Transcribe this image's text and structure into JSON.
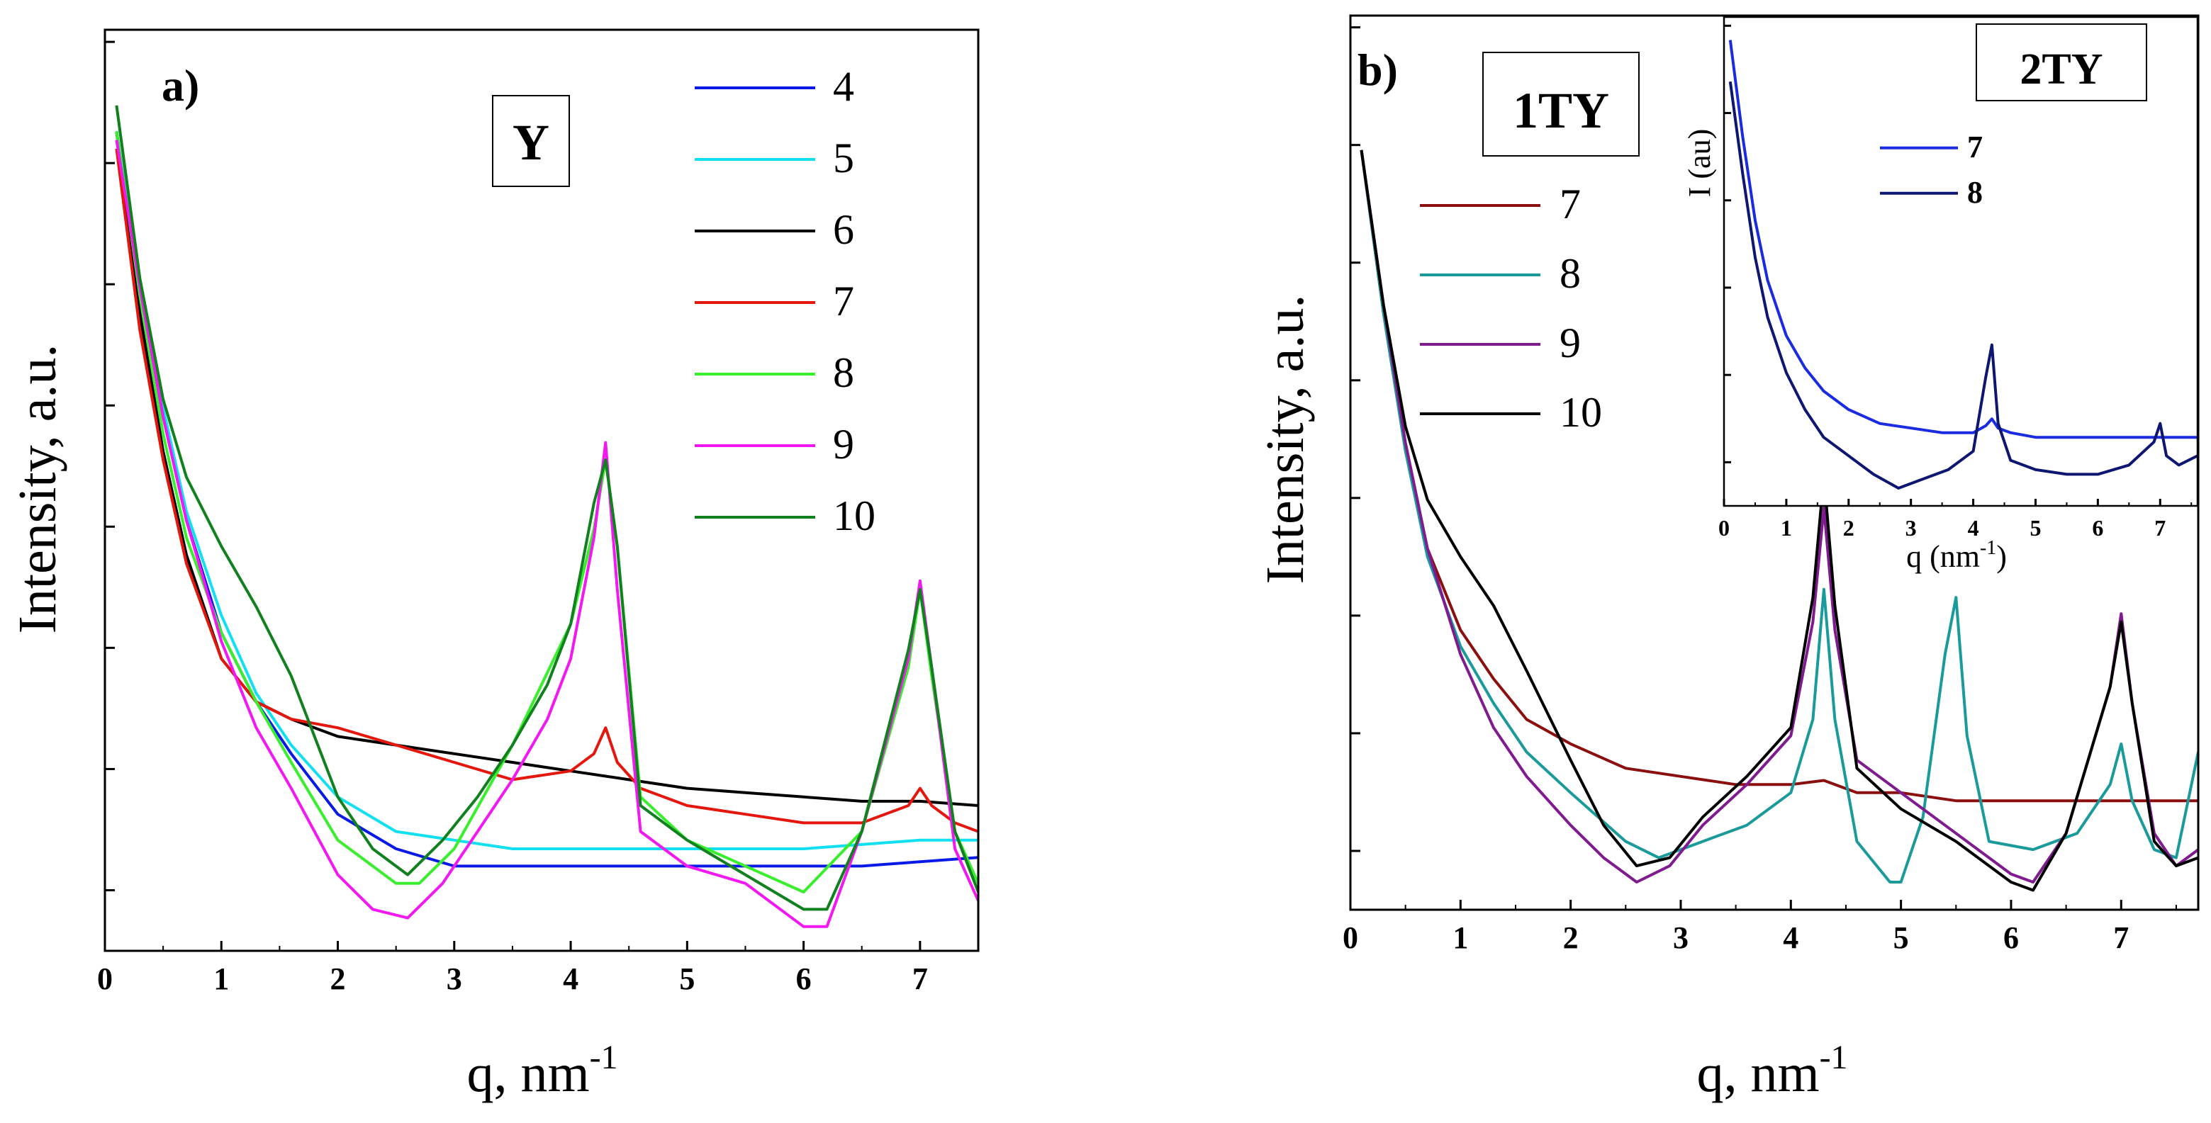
{
  "panels": [
    {
      "id": "a",
      "panel_label": "a)",
      "sample_label": "Y",
      "xlabel": "q, nm",
      "xlabel_sup": "-1",
      "ylabel": "Intensity, a.u.",
      "legend": [
        {
          "label": "4",
          "color": "#0a1ae6"
        },
        {
          "label": "5",
          "color": "#12e0f0"
        },
        {
          "label": "6",
          "color": "#000000"
        },
        {
          "label": "7",
          "color": "#e3170d"
        },
        {
          "label": "8",
          "color": "#39ee2c"
        },
        {
          "label": "9",
          "color": "#f218f2"
        },
        {
          "label": "10",
          "color": "#11801e"
        }
      ]
    },
    {
      "id": "b",
      "panel_label": "b)",
      "sample_label": "1TY",
      "xlabel": "q, nm",
      "xlabel_sup": "-1",
      "ylabel": "Intensity, a.u.",
      "legend": [
        {
          "label": "7",
          "color": "#8b0f0f"
        },
        {
          "label": "8",
          "color": "#1a9a9a"
        },
        {
          "label": "9",
          "color": "#7f1a8f"
        },
        {
          "label": "10",
          "color": "#000000"
        }
      ]
    },
    {
      "id": "b-inset",
      "sample_label": "2TY",
      "xlabel": "q (nm",
      "xlabel_sup": "-1",
      "xlabel_end": ")",
      "ylabel": "I (au)",
      "legend": [
        {
          "label": "7",
          "color": "#1a2be0"
        },
        {
          "label": "8",
          "color": "#0d1670"
        }
      ]
    }
  ],
  "chart_data": [
    {
      "type": "line",
      "title": "a)",
      "annotation": "Y",
      "xlabel": "q, nm^-1",
      "ylabel": "Intensity, a.u.",
      "xlim": [
        0,
        7.5
      ],
      "ylim": [
        0,
        1
      ],
      "xticks": [
        0,
        1,
        2,
        3,
        4,
        5,
        6,
        7
      ],
      "legend_position": "top-right",
      "series": [
        {
          "name": "4",
          "color": "#0a1ae6",
          "x": [
            0.1,
            0.3,
            0.5,
            0.7,
            1.0,
            1.3,
            1.6,
            2.0,
            2.5,
            3.0,
            3.5,
            4.0,
            4.5,
            5.0,
            5.5,
            6.0,
            6.5,
            7.0,
            7.5
          ],
          "y": [
            0.93,
            0.75,
            0.6,
            0.48,
            0.35,
            0.27,
            0.21,
            0.14,
            0.1,
            0.08,
            0.08,
            0.08,
            0.08,
            0.08,
            0.08,
            0.08,
            0.08,
            0.085,
            0.09
          ]
        },
        {
          "name": "5",
          "color": "#12e0f0",
          "x": [
            0.1,
            0.3,
            0.5,
            0.7,
            1.0,
            1.3,
            1.6,
            2.0,
            2.5,
            3.0,
            3.5,
            4.0,
            4.5,
            5.0,
            5.5,
            6.0,
            6.5,
            7.0,
            7.5
          ],
          "y": [
            0.93,
            0.75,
            0.61,
            0.49,
            0.37,
            0.28,
            0.22,
            0.16,
            0.12,
            0.11,
            0.1,
            0.1,
            0.1,
            0.1,
            0.1,
            0.1,
            0.105,
            0.11,
            0.11
          ]
        },
        {
          "name": "6",
          "color": "#000000",
          "x": [
            0.1,
            0.3,
            0.5,
            0.7,
            1.0,
            1.3,
            1.6,
            2.0,
            2.5,
            3.0,
            3.5,
            4.0,
            4.5,
            5.0,
            5.5,
            6.0,
            6.5,
            7.0,
            7.5
          ],
          "y": [
            0.93,
            0.72,
            0.56,
            0.44,
            0.32,
            0.27,
            0.25,
            0.23,
            0.22,
            0.21,
            0.2,
            0.19,
            0.18,
            0.17,
            0.165,
            0.16,
            0.155,
            0.155,
            0.15
          ]
        },
        {
          "name": "7",
          "color": "#e3170d",
          "x": [
            0.1,
            0.3,
            0.5,
            0.7,
            1.0,
            1.3,
            1.6,
            2.0,
            2.5,
            3.0,
            3.5,
            4.0,
            4.2,
            4.3,
            4.4,
            4.6,
            5.0,
            5.5,
            6.0,
            6.5,
            6.9,
            7.0,
            7.1,
            7.3,
            7.5
          ],
          "y": [
            0.91,
            0.7,
            0.55,
            0.43,
            0.32,
            0.27,
            0.25,
            0.24,
            0.22,
            0.2,
            0.18,
            0.19,
            0.21,
            0.24,
            0.2,
            0.17,
            0.15,
            0.14,
            0.13,
            0.13,
            0.15,
            0.17,
            0.15,
            0.13,
            0.12
          ]
        },
        {
          "name": "8",
          "color": "#39ee2c",
          "x": [
            0.1,
            0.3,
            0.5,
            0.7,
            1.0,
            1.3,
            1.6,
            2.0,
            2.5,
            2.7,
            3.0,
            3.5,
            4.0,
            4.2,
            4.3,
            4.4,
            4.6,
            5.0,
            5.5,
            6.0,
            6.5,
            6.9,
            7.0,
            7.1,
            7.3,
            7.5
          ],
          "y": [
            0.93,
            0.74,
            0.58,
            0.46,
            0.35,
            0.27,
            0.2,
            0.11,
            0.06,
            0.06,
            0.1,
            0.22,
            0.36,
            0.47,
            0.55,
            0.45,
            0.16,
            0.11,
            0.08,
            0.05,
            0.12,
            0.31,
            0.4,
            0.3,
            0.12,
            0.06
          ]
        },
        {
          "name": "9",
          "color": "#f218f2",
          "x": [
            0.1,
            0.3,
            0.5,
            0.7,
            1.0,
            1.3,
            1.6,
            2.0,
            2.3,
            2.6,
            2.9,
            3.2,
            3.5,
            3.8,
            4.0,
            4.2,
            4.3,
            4.4,
            4.6,
            5.0,
            5.5,
            6.0,
            6.2,
            6.5,
            6.9,
            7.0,
            7.1,
            7.3,
            7.5
          ],
          "y": [
            0.92,
            0.75,
            0.6,
            0.48,
            0.34,
            0.24,
            0.17,
            0.07,
            0.03,
            0.02,
            0.06,
            0.12,
            0.18,
            0.25,
            0.32,
            0.46,
            0.57,
            0.4,
            0.12,
            0.08,
            0.06,
            0.01,
            0.01,
            0.12,
            0.32,
            0.41,
            0.31,
            0.1,
            0.04
          ]
        },
        {
          "name": "10",
          "color": "#11801e",
          "x": [
            0.1,
            0.3,
            0.5,
            0.7,
            1.0,
            1.3,
            1.6,
            2.0,
            2.3,
            2.6,
            2.9,
            3.2,
            3.5,
            3.8,
            4.0,
            4.2,
            4.3,
            4.4,
            4.6,
            5.0,
            5.5,
            6.0,
            6.2,
            6.5,
            6.9,
            7.0,
            7.1,
            7.3,
            7.5
          ],
          "y": [
            0.96,
            0.76,
            0.62,
            0.53,
            0.45,
            0.38,
            0.3,
            0.16,
            0.1,
            0.07,
            0.11,
            0.16,
            0.22,
            0.29,
            0.36,
            0.5,
            0.55,
            0.45,
            0.15,
            0.11,
            0.07,
            0.03,
            0.03,
            0.12,
            0.33,
            0.4,
            0.31,
            0.12,
            0.05
          ]
        }
      ]
    },
    {
      "type": "line",
      "title": "b)",
      "annotation": "1TY",
      "xlabel": "q, nm^-1",
      "ylabel": "Intensity, a.u.",
      "xlim": [
        0,
        7.7
      ],
      "ylim": [
        0,
        1
      ],
      "xticks": [
        0,
        1,
        2,
        3,
        4,
        5,
        6,
        7
      ],
      "legend_position": "top-left",
      "series": [
        {
          "name": "7",
          "color": "#8b0f0f",
          "x": [
            0.1,
            0.3,
            0.5,
            0.7,
            1.0,
            1.3,
            1.6,
            2.0,
            2.5,
            3.0,
            3.5,
            4.0,
            4.3,
            4.6,
            5.0,
            5.5,
            6.0,
            6.5,
            7.0,
            7.5,
            7.7
          ],
          "y": [
            0.92,
            0.72,
            0.55,
            0.43,
            0.33,
            0.27,
            0.22,
            0.19,
            0.16,
            0.15,
            0.14,
            0.14,
            0.145,
            0.13,
            0.13,
            0.12,
            0.12,
            0.12,
            0.12,
            0.12,
            0.12
          ]
        },
        {
          "name": "8",
          "color": "#1a9a9a",
          "x": [
            0.1,
            0.3,
            0.5,
            0.7,
            1.0,
            1.3,
            1.6,
            2.0,
            2.5,
            2.8,
            3.2,
            3.6,
            4.0,
            4.2,
            4.3,
            4.4,
            4.6,
            4.9,
            5.0,
            5.2,
            5.4,
            5.5,
            5.6,
            5.8,
            6.2,
            6.6,
            6.9,
            7.0,
            7.1,
            7.3,
            7.5,
            7.7
          ],
          "y": [
            0.92,
            0.72,
            0.55,
            0.42,
            0.31,
            0.24,
            0.18,
            0.13,
            0.07,
            0.05,
            0.07,
            0.09,
            0.13,
            0.22,
            0.38,
            0.22,
            0.07,
            0.02,
            0.02,
            0.1,
            0.3,
            0.37,
            0.2,
            0.07,
            0.06,
            0.08,
            0.14,
            0.19,
            0.12,
            0.06,
            0.05,
            0.18
          ]
        },
        {
          "name": "9",
          "color": "#7f1a8f",
          "x": [
            0.1,
            0.3,
            0.5,
            0.7,
            1.0,
            1.3,
            1.6,
            2.0,
            2.3,
            2.6,
            2.9,
            3.2,
            3.6,
            4.0,
            4.2,
            4.3,
            4.4,
            4.6,
            5.0,
            5.5,
            6.0,
            6.2,
            6.5,
            6.9,
            7.0,
            7.1,
            7.3,
            7.5,
            7.7
          ],
          "y": [
            0.92,
            0.73,
            0.56,
            0.43,
            0.3,
            0.21,
            0.15,
            0.09,
            0.05,
            0.02,
            0.04,
            0.09,
            0.14,
            0.2,
            0.34,
            0.48,
            0.33,
            0.17,
            0.13,
            0.08,
            0.03,
            0.02,
            0.08,
            0.26,
            0.35,
            0.24,
            0.08,
            0.04,
            0.06
          ]
        },
        {
          "name": "10",
          "color": "#000000",
          "x": [
            0.1,
            0.3,
            0.5,
            0.7,
            1.0,
            1.3,
            1.6,
            2.0,
            2.3,
            2.6,
            2.9,
            3.2,
            3.6,
            4.0,
            4.2,
            4.3,
            4.4,
            4.6,
            5.0,
            5.5,
            6.0,
            6.2,
            6.5,
            6.9,
            7.0,
            7.1,
            7.3,
            7.5,
            7.7
          ],
          "y": [
            0.92,
            0.73,
            0.58,
            0.49,
            0.42,
            0.36,
            0.28,
            0.17,
            0.09,
            0.04,
            0.05,
            0.1,
            0.15,
            0.21,
            0.37,
            0.52,
            0.36,
            0.16,
            0.11,
            0.07,
            0.02,
            0.01,
            0.08,
            0.26,
            0.34,
            0.24,
            0.07,
            0.04,
            0.05
          ]
        }
      ]
    },
    {
      "type": "line",
      "title": "2TY",
      "xlabel": "q (nm^-1)",
      "ylabel": "I (au)",
      "xlim": [
        0,
        7.6
      ],
      "ylim": [
        0,
        1
      ],
      "xticks": [
        0,
        1,
        2,
        3,
        4,
        5,
        6,
        7
      ],
      "legend_position": "top-center",
      "series": [
        {
          "name": "7",
          "color": "#1a2be0",
          "x": [
            0.1,
            0.3,
            0.5,
            0.7,
            1.0,
            1.3,
            1.6,
            2.0,
            2.5,
            3.0,
            3.5,
            4.0,
            4.2,
            4.3,
            4.4,
            4.6,
            5.0,
            5.5,
            6.0,
            6.5,
            7.0,
            7.5,
            7.6
          ],
          "y": [
            0.99,
            0.78,
            0.6,
            0.47,
            0.35,
            0.28,
            0.23,
            0.19,
            0.16,
            0.15,
            0.14,
            0.14,
            0.155,
            0.17,
            0.15,
            0.14,
            0.13,
            0.13,
            0.13,
            0.13,
            0.13,
            0.13,
            0.13
          ]
        },
        {
          "name": "8",
          "color": "#0d1670",
          "x": [
            0.1,
            0.3,
            0.5,
            0.7,
            1.0,
            1.3,
            1.6,
            2.0,
            2.4,
            2.8,
            3.2,
            3.6,
            4.0,
            4.2,
            4.3,
            4.4,
            4.6,
            5.0,
            5.5,
            6.0,
            6.5,
            6.9,
            7.0,
            7.1,
            7.3,
            7.6
          ],
          "y": [
            0.9,
            0.7,
            0.52,
            0.39,
            0.27,
            0.19,
            0.13,
            0.09,
            0.05,
            0.02,
            0.04,
            0.06,
            0.1,
            0.26,
            0.33,
            0.16,
            0.08,
            0.06,
            0.05,
            0.05,
            0.07,
            0.12,
            0.16,
            0.09,
            0.07,
            0.09
          ]
        }
      ]
    }
  ]
}
